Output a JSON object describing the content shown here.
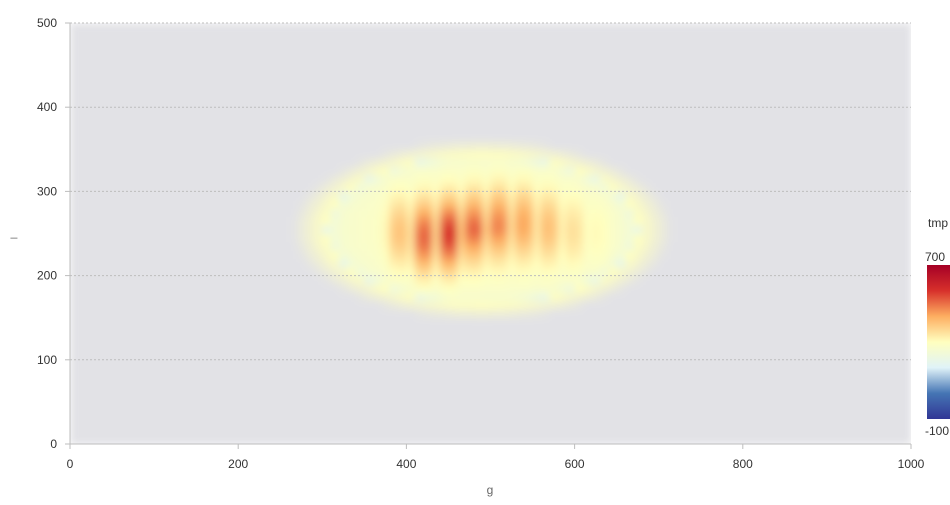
{
  "chart_data": {
    "type": "heatmap",
    "title": "",
    "xlabel": "g",
    "ylabel": "_",
    "xlim": [
      0,
      1000
    ],
    "ylim": [
      0,
      500
    ],
    "x_ticks": [
      0,
      200,
      400,
      600,
      800,
      1000
    ],
    "y_ticks": [
      0,
      100,
      200,
      300,
      400,
      500
    ],
    "grid": "horizontal dotted",
    "background_value": 0,
    "blob": {
      "center": [
        490,
        255
      ],
      "radius": [
        210,
        100
      ],
      "peak_value": 700,
      "peak_columns_x": [
        390,
        420,
        450,
        480,
        510,
        540,
        570,
        600,
        630
      ],
      "peak_columns_y": [
        250,
        240,
        245,
        260,
        270,
        270,
        260,
        250,
        245
      ],
      "peak_column_values": [
        560,
        700,
        690,
        560,
        540,
        530,
        520,
        480,
        430
      ]
    },
    "colorbar": {
      "title": "tmp",
      "min": -100,
      "max": 700,
      "min_label": "-100",
      "max_label": "700",
      "colors": [
        "#313695",
        "#4575b4",
        "#e0f3f8",
        "#ffffbf",
        "#fdae61",
        "#d7302b",
        "#a50026"
      ]
    }
  }
}
